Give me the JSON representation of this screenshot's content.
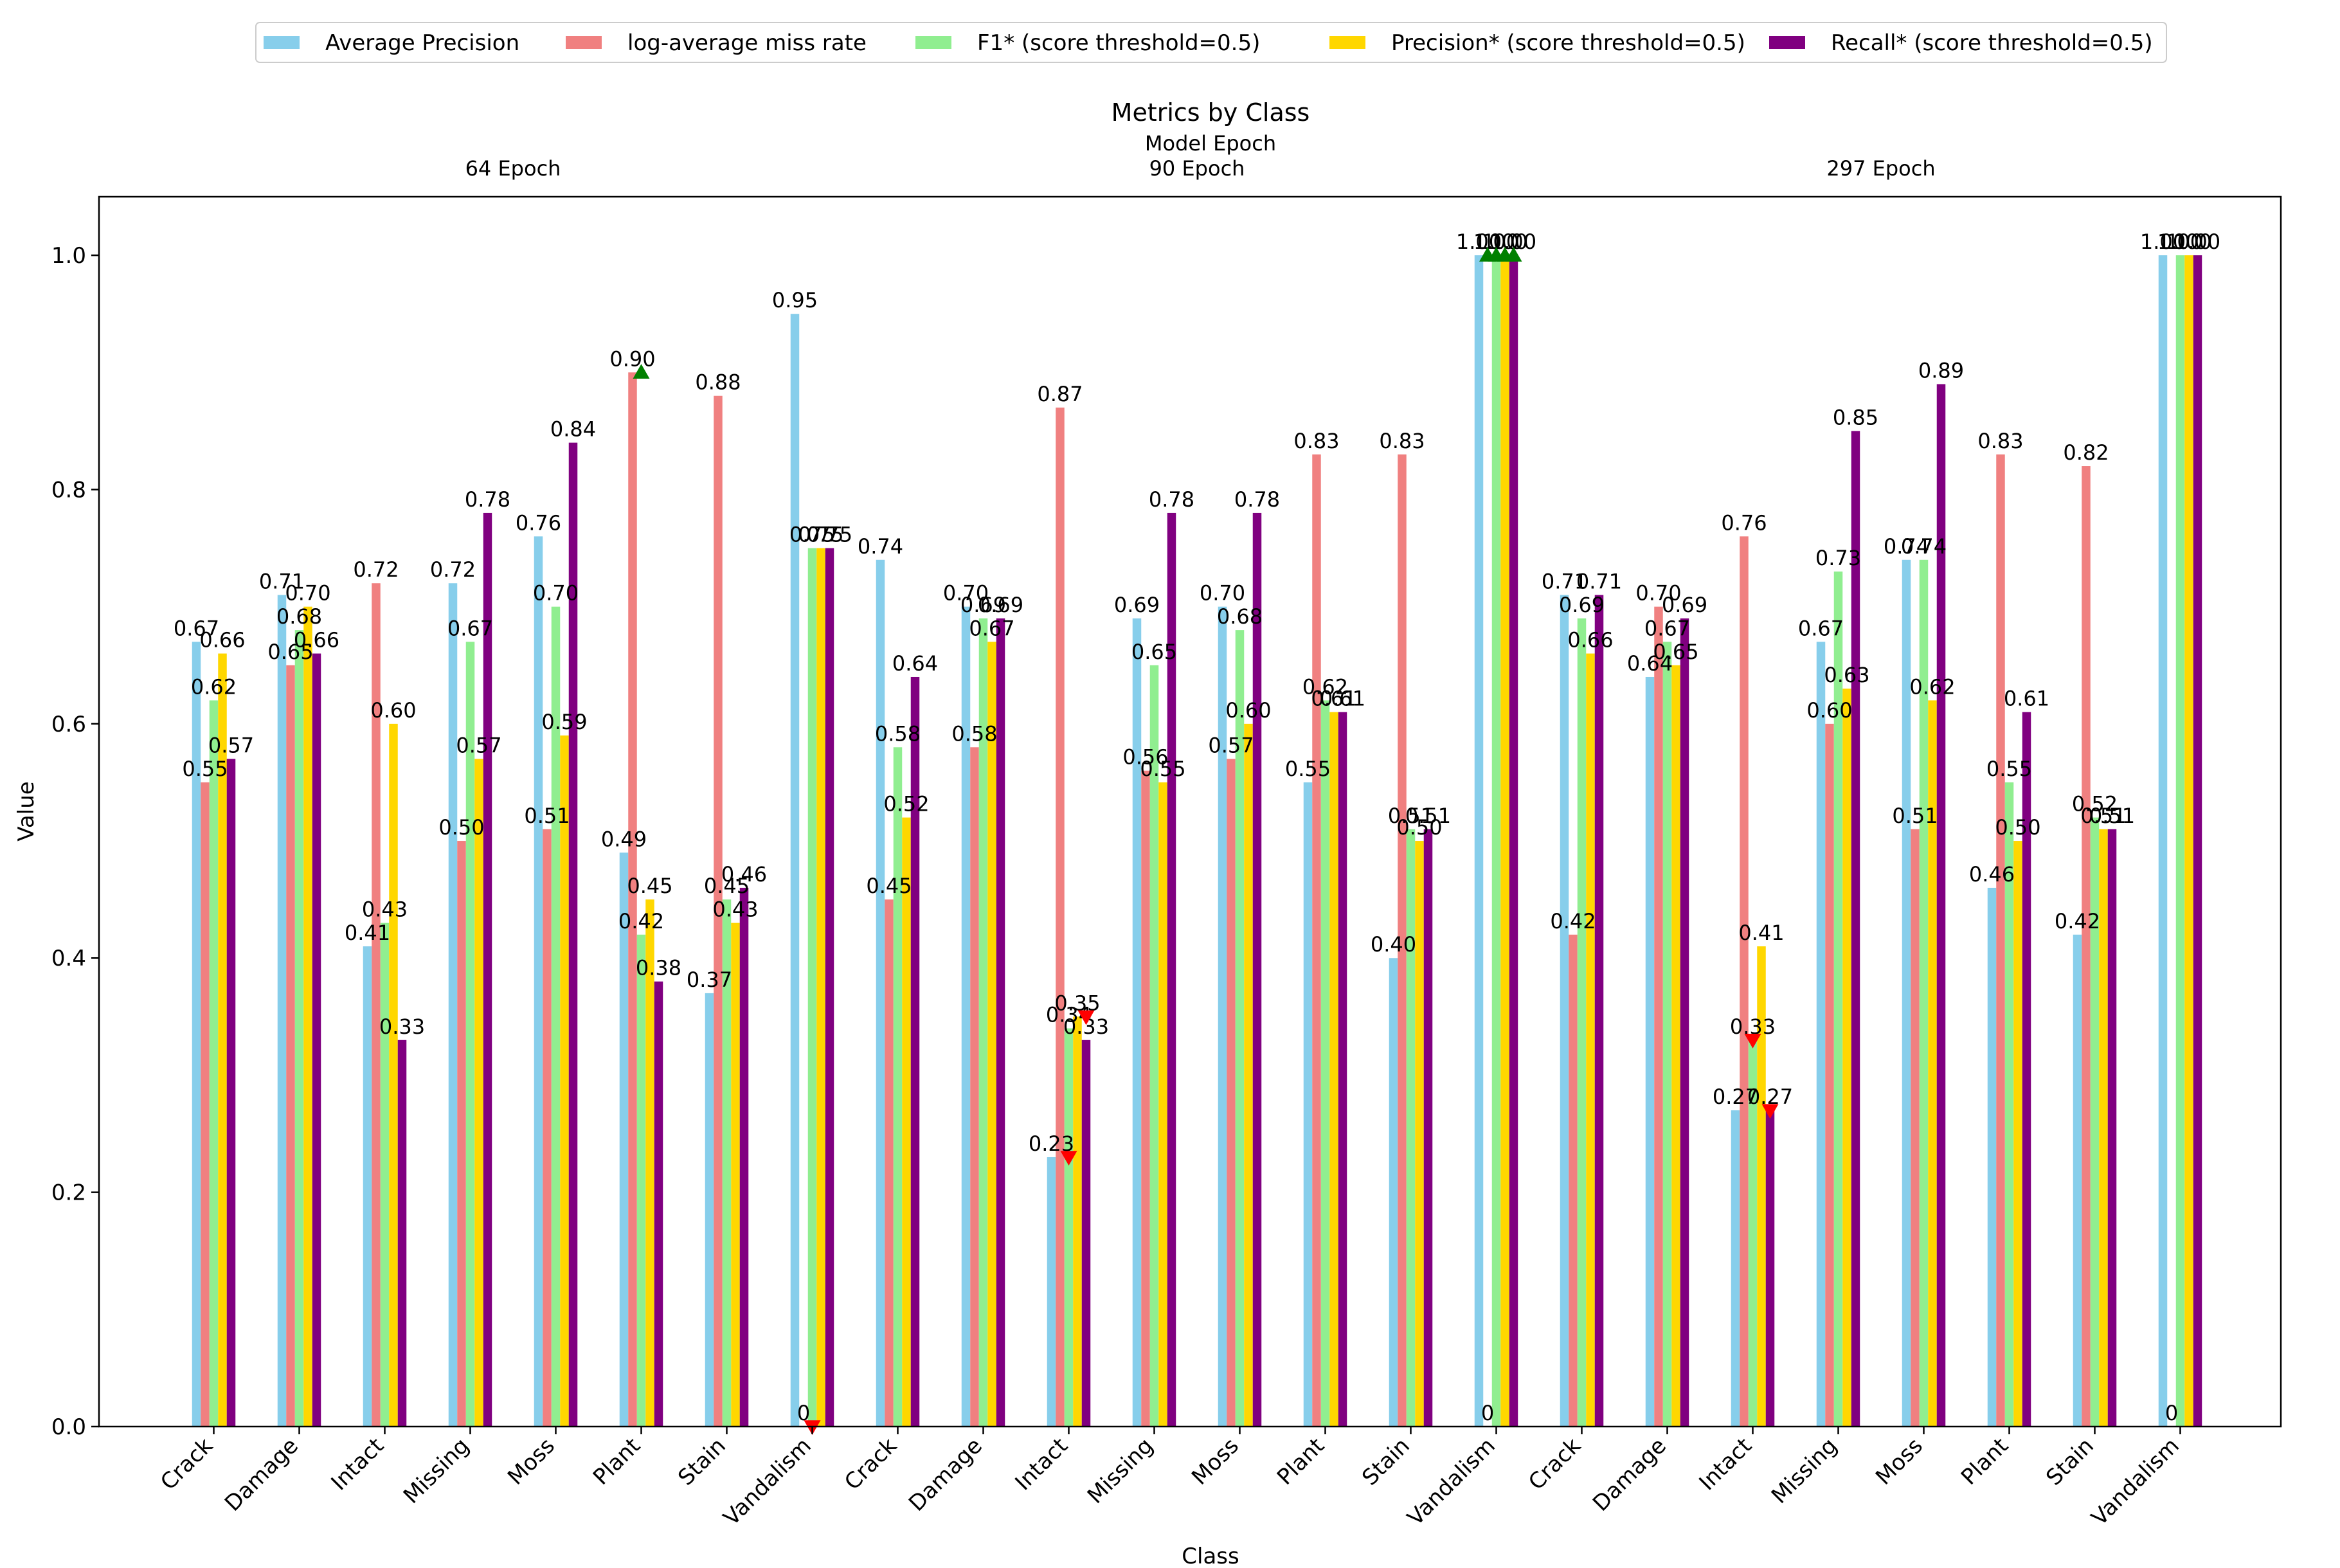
{
  "chart_data": {
    "type": "bar",
    "title": "Metrics by Class",
    "secondary_xlabel": "Model Epoch",
    "xlabel": "Class",
    "ylabel": "Value",
    "ylim": [
      0,
      1.05
    ],
    "y_ticks": [
      "0.0",
      "0.2",
      "0.4",
      "0.6",
      "0.8",
      "1.0"
    ],
    "y_tick_values": [
      0,
      0.2,
      0.4,
      0.6,
      0.8,
      1.0
    ],
    "legend_position": "top-center",
    "groups": [
      {
        "label": "64 Epoch",
        "start_index": 0,
        "end_index": 7
      },
      {
        "label": "90 Epoch",
        "start_index": 8,
        "end_index": 15
      },
      {
        "label": "297 Epoch",
        "start_index": 16,
        "end_index": 23
      }
    ],
    "categories": [
      "Crack",
      "Damage",
      "Intact",
      "Missing",
      "Moss",
      "Plant",
      "Stain",
      "Vandalism",
      "Crack",
      "Damage",
      "Intact",
      "Missing",
      "Moss",
      "Plant",
      "Stain",
      "Vandalism",
      "Crack",
      "Damage",
      "Intact",
      "Missing",
      "Moss",
      "Plant",
      "Stain",
      "Vandalism"
    ],
    "series": [
      {
        "name": "Average Precision",
        "color": "#87CEEB",
        "values": [
          0.67,
          0.71,
          0.41,
          0.72,
          0.76,
          0.49,
          0.37,
          0.95,
          0.74,
          0.7,
          0.23,
          0.69,
          0.7,
          0.55,
          0.4,
          1.0,
          0.71,
          0.64,
          0.27,
          0.67,
          0.74,
          0.46,
          0.42,
          1.0
        ],
        "labels": [
          "0.67",
          "0.71",
          "0.41",
          "0.72",
          "0.76",
          "0.49",
          "0.37",
          "0.95",
          "0.74",
          "0.70",
          "0.23",
          "0.69",
          "0.70",
          "0.55",
          "0.40",
          "1.00",
          "0.71",
          "0.64",
          "0.27",
          "0.67",
          "0.74",
          "0.46",
          "0.42",
          "1.00"
        ]
      },
      {
        "name": "log-average miss rate",
        "color": "#F08080",
        "values": [
          0.55,
          0.65,
          0.72,
          0.5,
          0.51,
          0.9,
          0.88,
          0,
          0.45,
          0.58,
          0.87,
          0.56,
          0.57,
          0.83,
          0.83,
          0,
          0.42,
          0.7,
          0.76,
          0.6,
          0.51,
          0.83,
          0.82,
          0
        ],
        "labels": [
          "0.55",
          "0.65",
          "0.72",
          "0.50",
          "0.51",
          "0.90",
          "0.88",
          "0",
          "0.45",
          "0.58",
          "0.87",
          "0.56",
          "0.57",
          "0.83",
          "0.83",
          "0",
          "0.42",
          "0.70",
          "0.76",
          "0.60",
          "0.51",
          "0.83",
          "0.82",
          "0"
        ]
      },
      {
        "name": "F1* (score threshold=0.5)",
        "color": "#90EE90",
        "values": [
          0.62,
          0.68,
          0.43,
          0.67,
          0.7,
          0.42,
          0.45,
          0.75,
          0.58,
          0.69,
          0.34,
          0.65,
          0.68,
          0.62,
          0.51,
          1.0,
          0.69,
          0.67,
          0.33,
          0.73,
          0.74,
          0.55,
          0.52,
          1.0
        ],
        "labels": [
          "0.62",
          "0.68",
          "0.43",
          "0.67",
          "0.70",
          "0.42",
          "0.45",
          "0.75",
          "0.58",
          "0.69",
          "0.34",
          "0.65",
          "0.68",
          "0.62",
          "0.51",
          "1.00",
          "0.69",
          "0.67",
          "0.33",
          "0.73",
          "0.74",
          "0.55",
          "0.52",
          "1.00"
        ]
      },
      {
        "name": "Precision* (score threshold=0.5)",
        "color": "#FFD700",
        "values": [
          0.66,
          0.7,
          0.6,
          0.57,
          0.59,
          0.45,
          0.43,
          0.75,
          0.52,
          0.67,
          0.35,
          0.55,
          0.6,
          0.61,
          0.5,
          1.0,
          0.66,
          0.65,
          0.41,
          0.63,
          0.62,
          0.5,
          0.51,
          1.0
        ],
        "labels": [
          "0.66",
          "0.70",
          "0.60",
          "0.57",
          "0.59",
          "0.45",
          "0.43",
          "0.75",
          "0.52",
          "0.67",
          "0.35",
          "0.55",
          "0.60",
          "0.61",
          "0.50",
          "1.00",
          "0.66",
          "0.65",
          "0.41",
          "0.63",
          "0.62",
          "0.50",
          "0.51",
          "1.00"
        ]
      },
      {
        "name": "Recall* (score threshold=0.5)",
        "color": "#800080",
        "values": [
          0.57,
          0.66,
          0.33,
          0.78,
          0.84,
          0.38,
          0.46,
          0.75,
          0.64,
          0.69,
          0.33,
          0.78,
          0.78,
          0.61,
          0.51,
          1.0,
          0.71,
          0.69,
          0.27,
          0.85,
          0.89,
          0.61,
          0.51,
          1.0
        ],
        "labels": [
          "0.57",
          "0.66",
          "0.33",
          "0.78",
          "0.84",
          "0.38",
          "0.46",
          "0.75",
          "0.64",
          "0.69",
          "0.33",
          "0.78",
          "0.78",
          "0.61",
          "0.51",
          "1.00",
          "0.71",
          "0.69",
          "0.27",
          "0.85",
          "0.89",
          "0.61",
          "0.51",
          "1.00"
        ]
      }
    ],
    "markers": [
      {
        "type": "up",
        "category_index": 5,
        "series_index": 2,
        "value": 0.9,
        "color": "#008000"
      },
      {
        "type": "down",
        "category_index": 7,
        "series_index": 2,
        "value": 0.0,
        "color": "#FF0000"
      },
      {
        "type": "down",
        "category_index": 10,
        "series_index": 2,
        "value": 0.23,
        "color": "#FF0000"
      },
      {
        "type": "down",
        "category_index": 10,
        "series_index": 4,
        "value": 0.35,
        "color": "#FF0000"
      },
      {
        "type": "up",
        "category_index": 15,
        "series_index": 1,
        "value": 1.0,
        "color": "#008000"
      },
      {
        "type": "up",
        "category_index": 15,
        "series_index": 2,
        "value": 1.0,
        "color": "#008000"
      },
      {
        "type": "up",
        "category_index": 15,
        "series_index": 3,
        "value": 1.0,
        "color": "#008000"
      },
      {
        "type": "up",
        "category_index": 15,
        "series_index": 4,
        "value": 1.0,
        "color": "#008000"
      },
      {
        "type": "down",
        "category_index": 18,
        "series_index": 2,
        "value": 0.33,
        "color": "#FF0000"
      },
      {
        "type": "down",
        "category_index": 18,
        "series_index": 4,
        "value": 0.27,
        "color": "#FF0000"
      }
    ]
  }
}
